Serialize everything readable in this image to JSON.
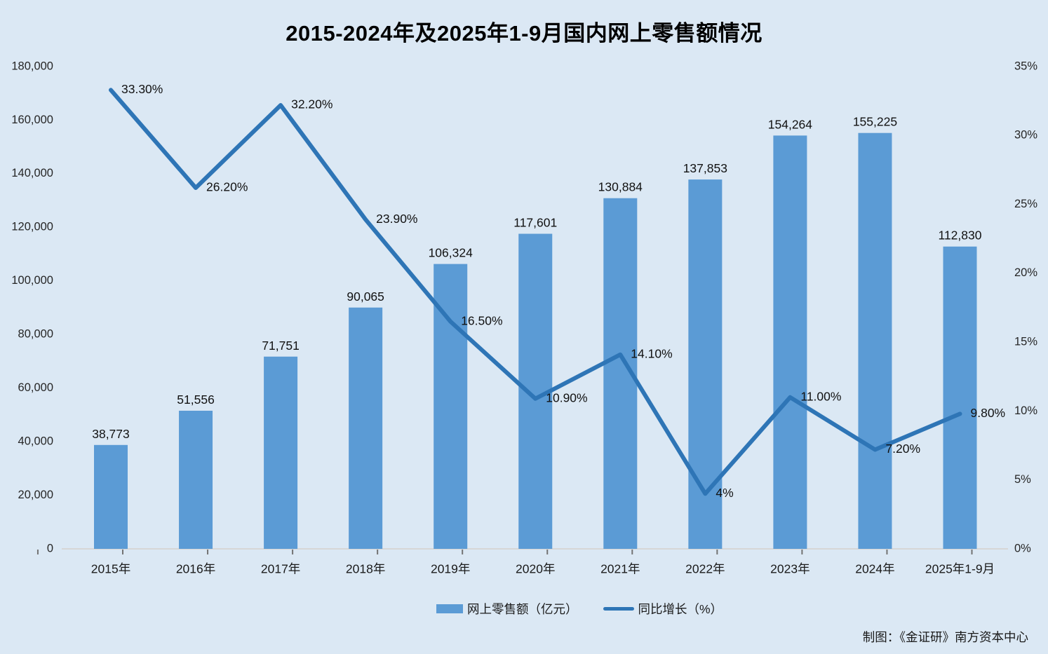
{
  "title": "2015-2024年及2025年1-9月国内网上零售额情况",
  "colors": {
    "background": "#dbe8f4",
    "bar": "#5b9bd5",
    "line": "#2e75b6",
    "axis_line": "#d6d6d6",
    "axis_tick": "#737373"
  },
  "chart_data": {
    "type": "bar",
    "subtype": "combo-bar-line-dual-axis",
    "title": "2015-2024年及2025年1-9月国内网上零售额情况",
    "categories": [
      "2015年",
      "2016年",
      "2017年",
      "2018年",
      "2019年",
      "2020年",
      "2021年",
      "2022年",
      "2023年",
      "2024年",
      "2025年1-9月"
    ],
    "series": [
      {
        "name": "网上零售额（亿元）",
        "type": "bar",
        "axis": "left",
        "values": [
          38773,
          51556,
          71751,
          90065,
          106324,
          117601,
          130884,
          137853,
          154264,
          155225,
          112830
        ],
        "labels": [
          "38,773",
          "51,556",
          "71,751",
          "90,065",
          "106,324",
          "117,601",
          "130,884",
          "137,853",
          "154,264",
          "155,225",
          "112,830"
        ]
      },
      {
        "name": "同比增长（%）",
        "type": "line",
        "axis": "right",
        "values": [
          33.3,
          26.2,
          32.2,
          23.9,
          16.5,
          10.9,
          14.1,
          4,
          11,
          7.2,
          9.8
        ],
        "labels": [
          "33.30%",
          "26.20%",
          "32.20%",
          "23.90%",
          "16.50%",
          "10.90%",
          "14.10%",
          "4%",
          "11.00%",
          "7.20%",
          "9.80%"
        ]
      }
    ],
    "left_axis": {
      "min": 0,
      "max": 180000,
      "step": 20000,
      "tick_labels": [
        "0",
        "20,000",
        "40,000",
        "60,000",
        "80,000",
        "100,000",
        "120,000",
        "140,000",
        "160,000",
        "180,000"
      ]
    },
    "right_axis": {
      "min": 0,
      "max": 35,
      "step": 5,
      "tick_labels": [
        "0%",
        "5%",
        "10%",
        "15%",
        "20%",
        "25%",
        "30%",
        "35%"
      ]
    },
    "grid": false,
    "legend_position": "bottom"
  },
  "legend": {
    "bar_label": "网上零售额（亿元）",
    "line_label": "同比增长（%）"
  },
  "footer": {
    "credit": "制图：《金证研》南方资本中心"
  }
}
